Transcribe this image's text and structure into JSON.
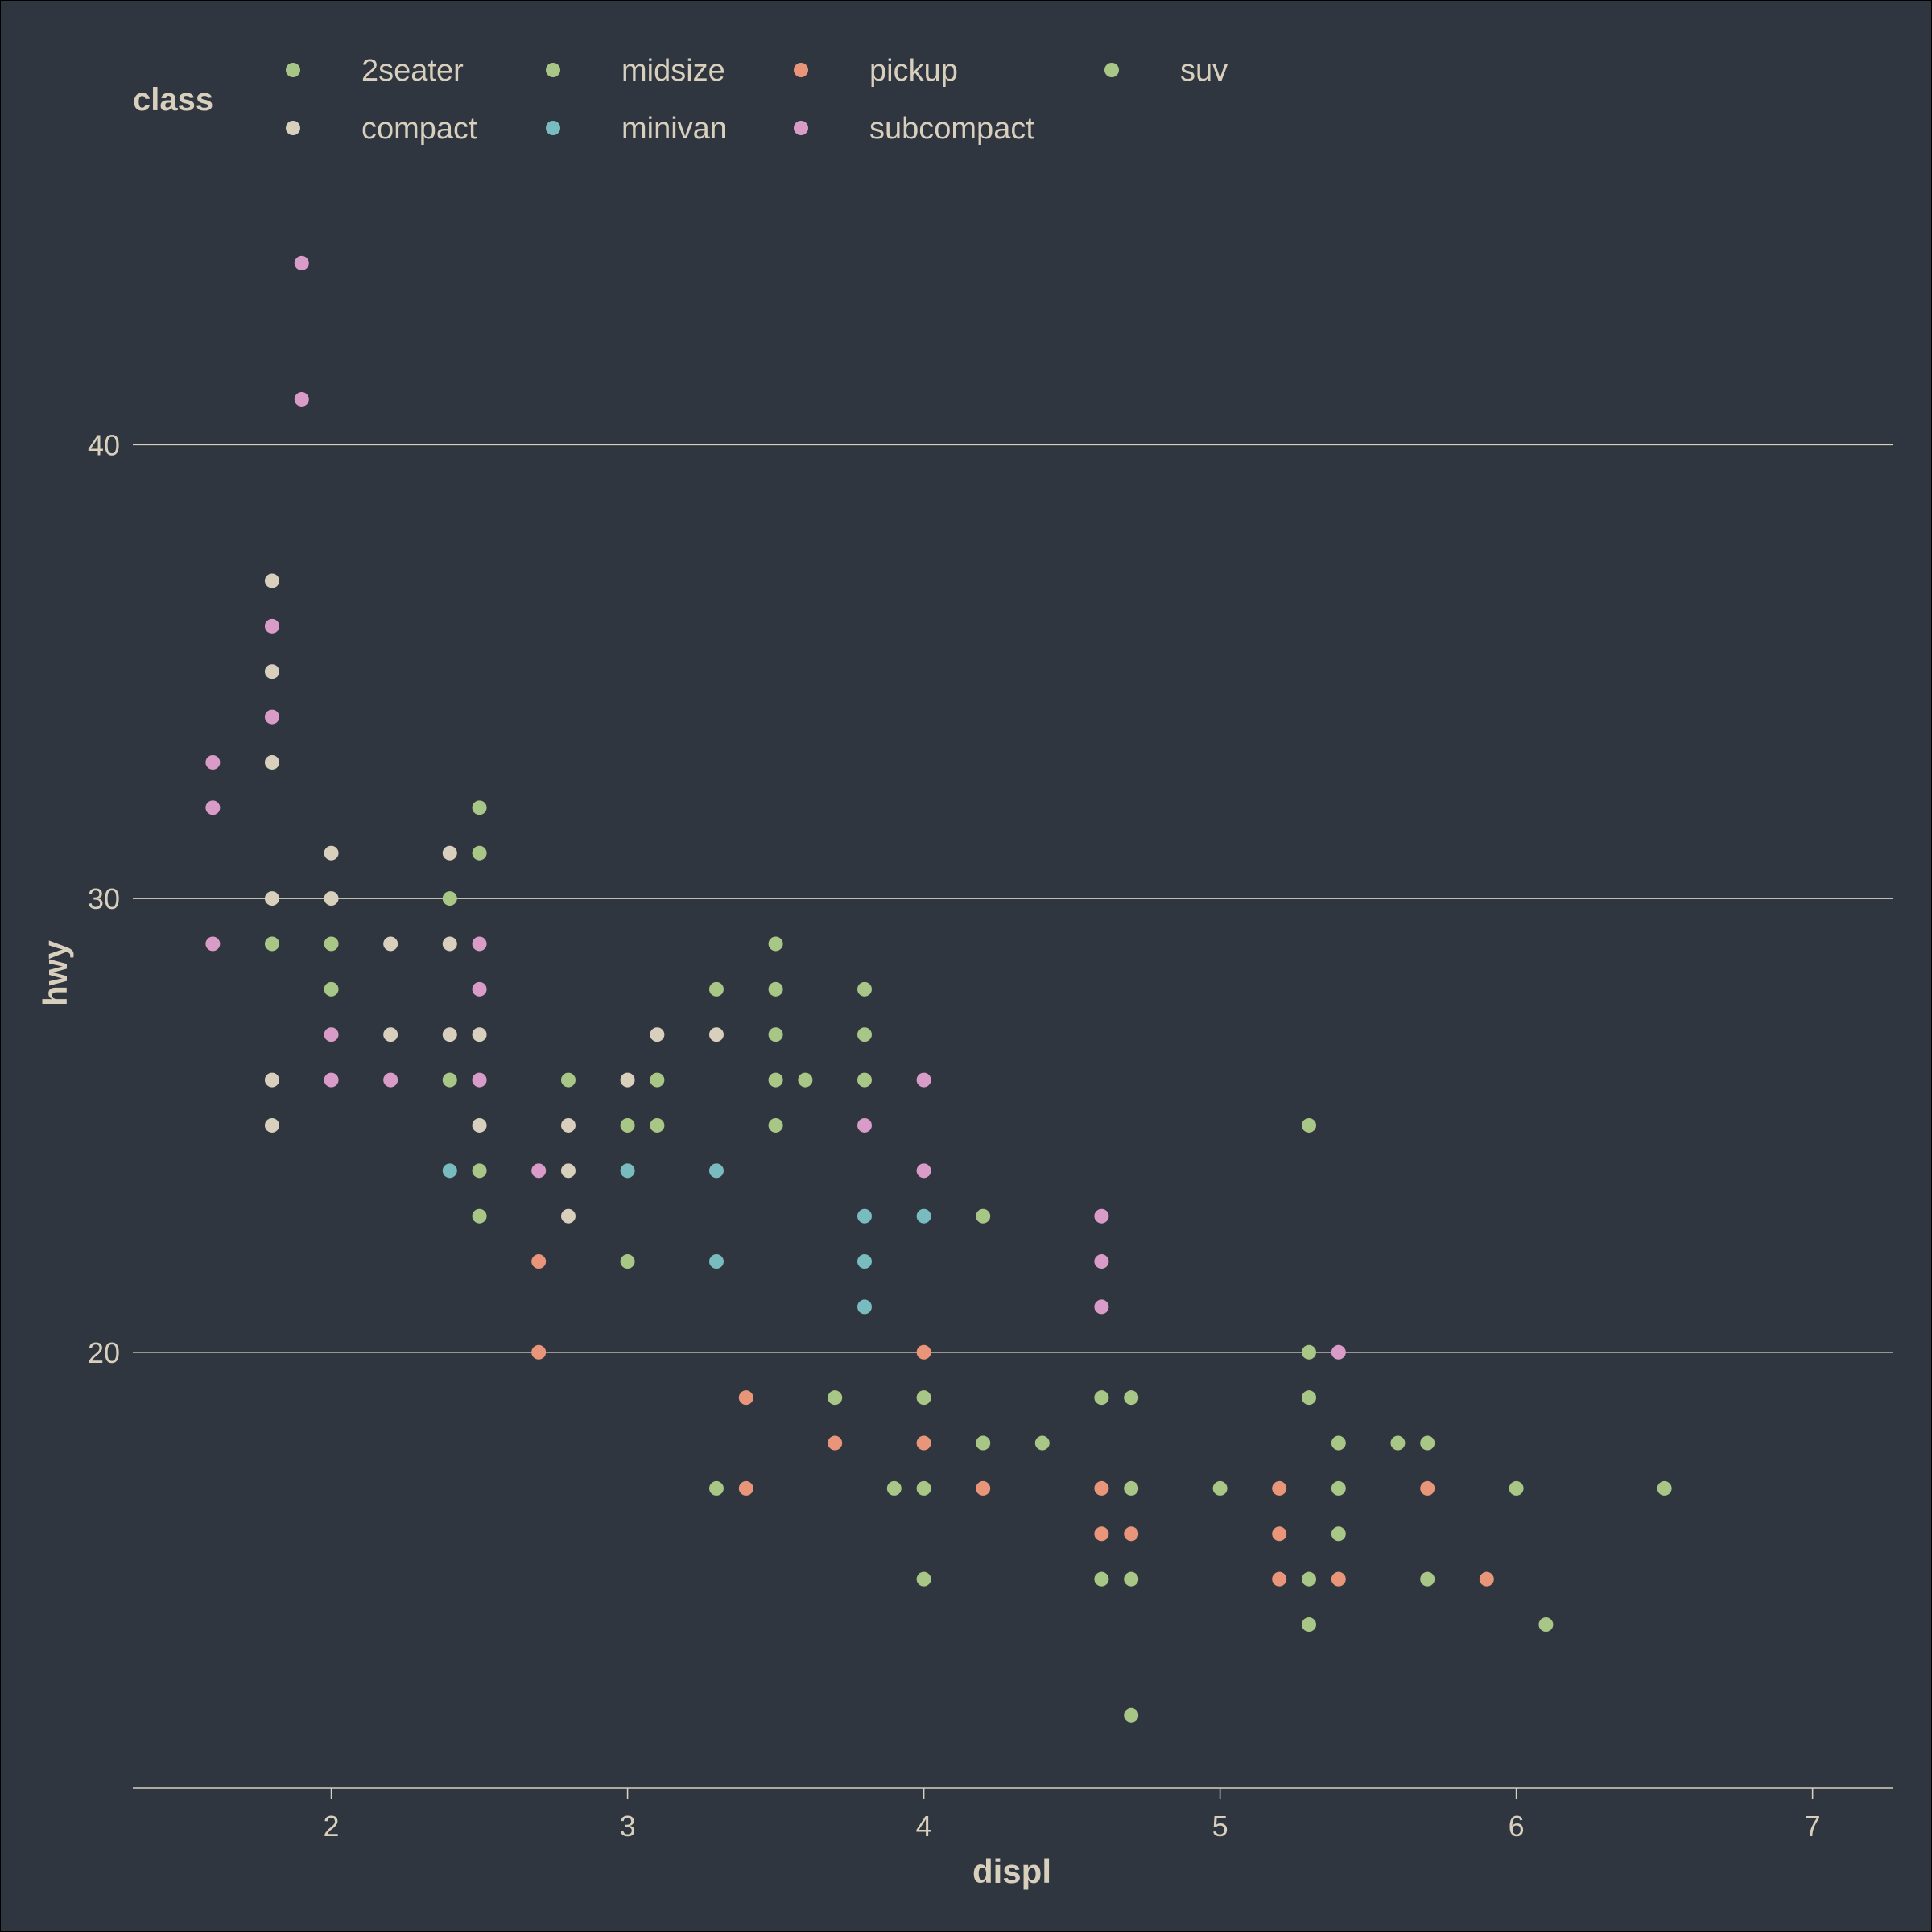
{
  "chart_data": {
    "type": "scatter",
    "xlabel": "displ",
    "ylabel": "hwy",
    "xlim": [
      1.33,
      7.27
    ],
    "ylim": [
      10.4,
      45.7
    ],
    "x_ticks": [
      2,
      3,
      4,
      5,
      6,
      7
    ],
    "y_ticks": [
      20,
      30,
      40
    ],
    "grid": "horizontal major lines only",
    "legend": {
      "title": "class",
      "placement": "top",
      "entries": [
        {
          "name": "2seater",
          "color": "#a8c686"
        },
        {
          "name": "compact",
          "color": "#d8cfbd"
        },
        {
          "name": "midsize",
          "color": "#a8c686"
        },
        {
          "name": "minivan",
          "color": "#79bcbf"
        },
        {
          "name": "pickup",
          "color": "#e8957a"
        },
        {
          "name": "subcompact",
          "color": "#d99cc8"
        },
        {
          "name": "suv",
          "color": "#a8c686"
        }
      ]
    },
    "colors": {
      "background": "#2f3640",
      "text": "#d8cfbd",
      "grid": "#d8cfbd"
    },
    "series": [
      {
        "name": "compact",
        "color": "#d8cfbd",
        "points": [
          [
            1.8,
            37
          ],
          [
            1.8,
            35
          ],
          [
            1.8,
            33
          ],
          [
            1.8,
            30
          ],
          [
            1.8,
            26
          ],
          [
            1.8,
            25
          ],
          [
            2.0,
            31
          ],
          [
            2.0,
            30
          ],
          [
            2.2,
            29
          ],
          [
            2.2,
            27
          ],
          [
            2.4,
            31
          ],
          [
            2.4,
            29
          ],
          [
            2.4,
            27
          ],
          [
            2.5,
            27
          ],
          [
            2.5,
            25
          ],
          [
            2.8,
            25
          ],
          [
            2.8,
            24
          ],
          [
            2.8,
            23
          ],
          [
            3.0,
            26
          ],
          [
            3.1,
            27
          ],
          [
            3.3,
            27
          ]
        ]
      },
      {
        "name": "midsize",
        "color": "#a8c686",
        "points": [
          [
            1.8,
            29
          ],
          [
            2.0,
            29
          ],
          [
            2.0,
            28
          ],
          [
            2.4,
            30
          ],
          [
            2.4,
            26
          ],
          [
            2.5,
            32
          ],
          [
            2.5,
            31
          ],
          [
            2.5,
            24
          ],
          [
            2.5,
            23
          ],
          [
            2.8,
            26
          ],
          [
            3.0,
            25
          ],
          [
            3.0,
            22
          ],
          [
            3.1,
            26
          ],
          [
            3.1,
            25
          ],
          [
            3.3,
            28
          ],
          [
            3.5,
            29
          ],
          [
            3.5,
            28
          ],
          [
            3.5,
            27
          ],
          [
            3.5,
            26
          ],
          [
            3.5,
            25
          ],
          [
            3.6,
            26
          ]
        ]
      },
      {
        "name": "minivan",
        "color": "#79bcbf",
        "points": [
          [
            2.4,
            24
          ],
          [
            3.0,
            24
          ],
          [
            3.3,
            24
          ],
          [
            3.3,
            22
          ],
          [
            3.8,
            23
          ],
          [
            3.8,
            22
          ],
          [
            3.8,
            21
          ],
          [
            4.0,
            23
          ]
        ]
      },
      {
        "name": "pickup",
        "color": "#e8957a",
        "points": [
          [
            2.7,
            22
          ],
          [
            2.7,
            20
          ],
          [
            3.4,
            19
          ],
          [
            3.4,
            17
          ],
          [
            3.7,
            18
          ],
          [
            4.0,
            20
          ],
          [
            4.0,
            18
          ],
          [
            4.2,
            17
          ],
          [
            4.6,
            17
          ],
          [
            4.6,
            16
          ],
          [
            4.7,
            16
          ],
          [
            5.2,
            17
          ],
          [
            5.2,
            16
          ],
          [
            5.2,
            15
          ],
          [
            5.4,
            15
          ],
          [
            5.7,
            17
          ],
          [
            5.9,
            15
          ]
        ]
      },
      {
        "name": "subcompact",
        "color": "#d99cc8",
        "points": [
          [
            1.6,
            33
          ],
          [
            1.6,
            32
          ],
          [
            1.6,
            29
          ],
          [
            1.8,
            36
          ],
          [
            1.8,
            34
          ],
          [
            1.9,
            44
          ],
          [
            1.9,
            41
          ],
          [
            2.0,
            27
          ],
          [
            2.0,
            26
          ],
          [
            2.2,
            26
          ],
          [
            2.5,
            29
          ],
          [
            2.5,
            28
          ],
          [
            2.5,
            26
          ],
          [
            2.7,
            24
          ],
          [
            3.8,
            25
          ],
          [
            4.0,
            26
          ],
          [
            4.0,
            24
          ],
          [
            4.6,
            23
          ],
          [
            4.6,
            22
          ],
          [
            4.6,
            21
          ],
          [
            5.4,
            20
          ]
        ]
      },
      {
        "name": "suv",
        "color": "#a8c686",
        "points": [
          [
            3.3,
            17
          ],
          [
            3.7,
            19
          ],
          [
            3.8,
            28
          ],
          [
            3.8,
            27
          ],
          [
            3.8,
            26
          ],
          [
            3.9,
            17
          ],
          [
            4.0,
            19
          ],
          [
            4.0,
            17
          ],
          [
            4.0,
            15
          ],
          [
            4.2,
            23
          ],
          [
            4.2,
            18
          ],
          [
            4.4,
            18
          ],
          [
            4.6,
            19
          ],
          [
            4.6,
            15
          ],
          [
            4.7,
            19
          ],
          [
            4.7,
            17
          ],
          [
            4.7,
            15
          ],
          [
            4.7,
            12
          ],
          [
            5.0,
            17
          ],
          [
            5.3,
            25
          ],
          [
            5.3,
            20
          ],
          [
            5.3,
            19
          ],
          [
            5.3,
            15
          ],
          [
            5.3,
            14
          ],
          [
            5.4,
            18
          ],
          [
            5.4,
            17
          ],
          [
            5.4,
            16
          ],
          [
            5.6,
            18
          ],
          [
            5.7,
            18
          ],
          [
            5.7,
            15
          ],
          [
            6.0,
            17
          ],
          [
            6.1,
            14
          ],
          [
            6.5,
            17
          ]
        ]
      }
    ]
  }
}
